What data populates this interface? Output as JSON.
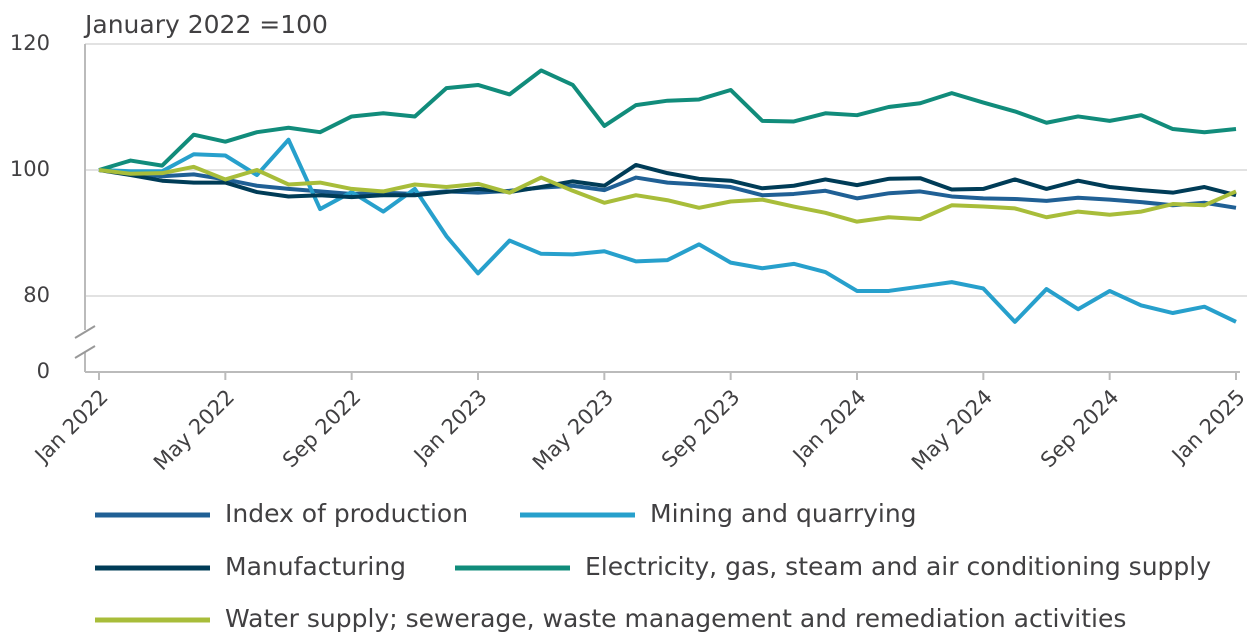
{
  "chart_data": {
    "type": "line",
    "annotation": "January 2022 =100",
    "categories": [
      "Jan 2022",
      null,
      null,
      null,
      "May 2022",
      null,
      null,
      null,
      "Sep 2022",
      null,
      null,
      null,
      "Jan 2023",
      null,
      null,
      null,
      "May 2023",
      null,
      null,
      null,
      "Sep 2023",
      null,
      null,
      null,
      "Jan 2024",
      null,
      null,
      null,
      "May 2024",
      null,
      null,
      null,
      "Sep 2024",
      null,
      null,
      null,
      "Jan 2025"
    ],
    "ylim": [
      0,
      120
    ],
    "yticks": [
      0,
      80,
      100,
      120
    ],
    "axis_break": true,
    "grid": true,
    "series": [
      {
        "name": "Index of production",
        "color": "#206095",
        "values": [
          100,
          99.5,
          99,
          99.3,
          98.5,
          97.5,
          97,
          96.6,
          96.2,
          96.4,
          96.2,
          96.6,
          96.4,
          96.7,
          97.2,
          97.5,
          96.8,
          98.8,
          98,
          97.7,
          97.3,
          96,
          96.2,
          96.7,
          95.5,
          96.3,
          96.6,
          95.8,
          95.5,
          95.4,
          95.1,
          95.6,
          95.3,
          94.9,
          94.4,
          94.8,
          94
        ]
      },
      {
        "name": "Mining and quarrying",
        "color": "#27a0cc",
        "values": [
          100,
          99.8,
          99.8,
          102.5,
          102.3,
          99.2,
          104.8,
          93.8,
          96.5,
          93.4,
          97,
          89.5,
          83.6,
          88.8,
          86.7,
          86.6,
          87.1,
          85.5,
          85.7,
          88.2,
          85.3,
          84.4,
          85.1,
          83.8,
          80.8,
          80.8,
          81.5,
          82.2,
          81.2,
          75.9,
          81.1,
          77.9,
          80.8,
          78.5,
          77.3,
          78.3,
          75.9
        ]
      },
      {
        "name": "Manufacturing",
        "color": "#003c57",
        "values": [
          100,
          99.2,
          98.3,
          98,
          98,
          96.5,
          95.8,
          96,
          95.7,
          96,
          96,
          96.5,
          97,
          96.5,
          97.3,
          98.2,
          97.5,
          100.8,
          99.5,
          98.6,
          98.3,
          97.1,
          97.5,
          98.5,
          97.6,
          98.6,
          98.7,
          96.9,
          97,
          98.5,
          97,
          98.3,
          97.3,
          96.8,
          96.4,
          97.3,
          96
        ]
      },
      {
        "name": "Electricity, gas, steam and air conditioning supply",
        "color": "#118c7b",
        "values": [
          100,
          101.5,
          100.7,
          105.6,
          104.5,
          106,
          106.7,
          106,
          108.5,
          109,
          108.5,
          113,
          113.5,
          112,
          115.8,
          113.5,
          107,
          110.3,
          111,
          111.2,
          112.7,
          107.8,
          107.7,
          109,
          108.7,
          110,
          110.6,
          112.2,
          110.7,
          109.3,
          107.5,
          108.5,
          107.8,
          108.7,
          106.5,
          106,
          106.5
        ]
      },
      {
        "name": "Water supply; sewerage, waste management and remediation activities",
        "color": "#a8bd3a",
        "values": [
          100,
          99.4,
          99.5,
          100.5,
          98.5,
          100,
          97.7,
          98,
          97,
          96.6,
          97.7,
          97.3,
          97.8,
          96.4,
          98.8,
          96.7,
          94.8,
          96,
          95.2,
          94,
          95,
          95.3,
          94.2,
          93.2,
          91.8,
          92.5,
          92.2,
          94.4,
          94.2,
          93.9,
          92.5,
          93.4,
          92.9,
          93.4,
          94.6,
          94.4,
          96.6
        ]
      }
    ]
  }
}
